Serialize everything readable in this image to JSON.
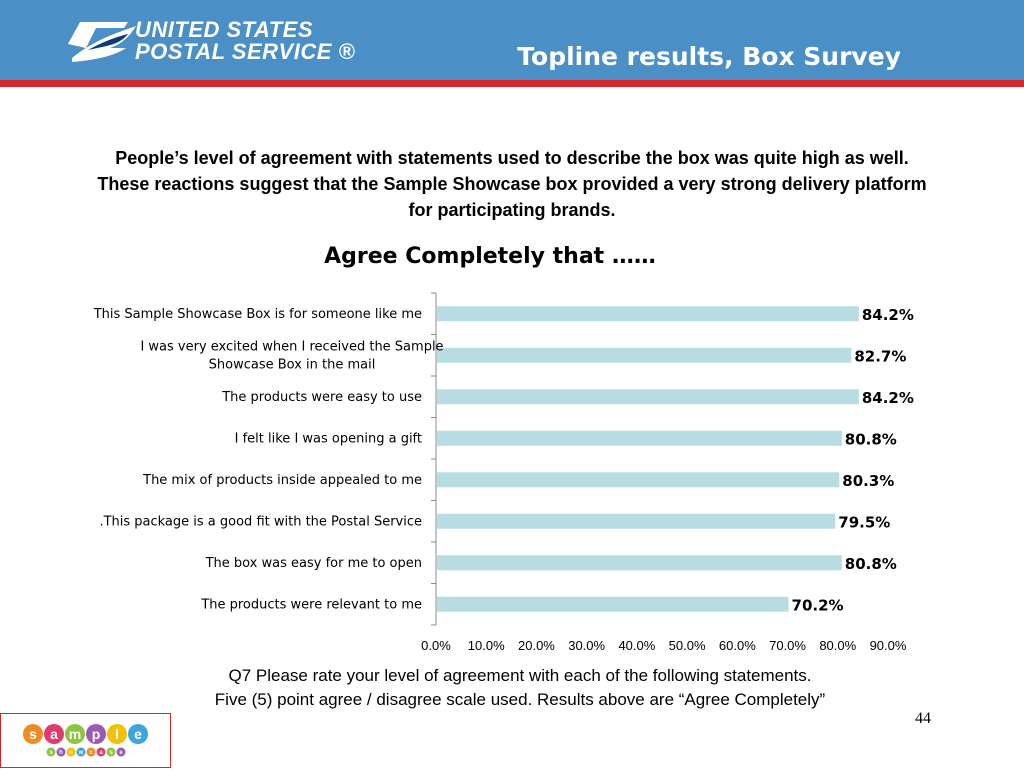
{
  "header": {
    "logo_line1": "UNITED STATES",
    "logo_line2": "POSTAL SERVICE ®",
    "title": "Topline results, Box Survey"
  },
  "intro": {
    "line1": "People’s level of agreement with statements used to describe the box was quite high as well.",
    "line2": "These reactions suggest that the Sample Showcase box provided a very strong delivery platform",
    "line3": "for participating brands."
  },
  "chart_data": {
    "type": "bar",
    "orientation": "horizontal",
    "title": "Agree Completely that ……",
    "categories": [
      [
        "This Sample Showcase Box is for someone like me"
      ],
      [
        "I was very excited when I received the Sample",
        "Showcase Box in the mail"
      ],
      [
        "The products were easy to use"
      ],
      [
        "I felt like I was opening a gift"
      ],
      [
        "The mix of products inside appealed to me"
      ],
      [
        ".This package is a good fit with the Postal Service"
      ],
      [
        "The box was easy for me to open"
      ],
      [
        "The products were relevant to me"
      ]
    ],
    "values": [
      84.2,
      82.7,
      84.2,
      80.8,
      80.3,
      79.5,
      80.8,
      70.2
    ],
    "value_labels": [
      "84.2%",
      "82.7%",
      "84.2%",
      "80.8%",
      "80.3%",
      "79.5%",
      "80.8%",
      "70.2%"
    ],
    "xlim": [
      0,
      90
    ],
    "xticks": [
      "0.0%",
      "10.0%",
      "20.0%",
      "30.0%",
      "40.0%",
      "50.0%",
      "60.0%",
      "70.0%",
      "80.0%",
      "90.0%"
    ],
    "bar_color": "#b7dde3",
    "grid": false,
    "legend": "none"
  },
  "footnote": {
    "line1": "Q7  Please rate your level of agreement with each of the following statements.",
    "line2": "Five (5) point agree  / disagree scale used.   Results above are “Agree Completely”"
  },
  "page_number": "44",
  "brand": {
    "word1": [
      "s",
      "a",
      "m",
      "p",
      "l",
      "e"
    ],
    "word2": [
      "s",
      "h",
      "o",
      "w",
      "c",
      "a",
      "s",
      "e"
    ],
    "colors": [
      "#f08a24",
      "#e23a6f",
      "#8cc63f",
      "#9b59b6",
      "#f2c200",
      "#3aa6dd"
    ]
  },
  "colors": {
    "header_blue": "#4a8fc6",
    "stripe_red": "#d7262c"
  }
}
